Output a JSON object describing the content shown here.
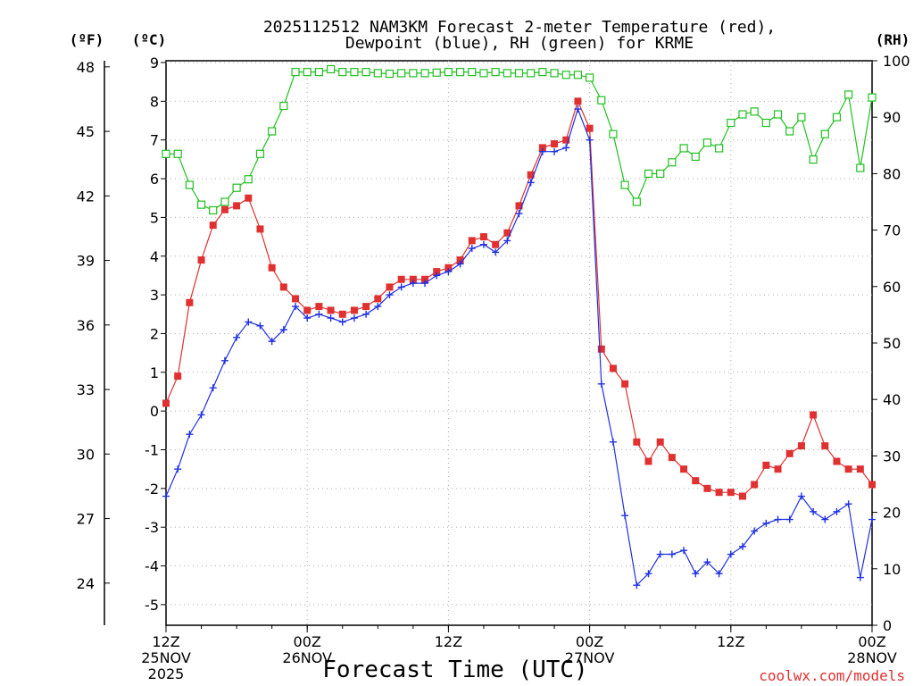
{
  "chart_data": {
    "type": "line",
    "title_lines": [
      "2025112512 NAM3KM Forecast 2-meter Temperature (red),",
      "Dewpoint (blue), RH (green) for KRME"
    ],
    "xlabel": "Forecast Time (UTC)",
    "credit": "coolwx.com/models",
    "units": {
      "fahrenheit": "(ºF)",
      "celsius": "(ºC)",
      "rh": "(RH)"
    },
    "x": {
      "range": [
        0,
        60
      ],
      "step_hours": 1
    },
    "x_ticks": [
      {
        "hour": 0,
        "lines": [
          "12Z",
          "25NOV",
          "2025"
        ]
      },
      {
        "hour": 12,
        "lines": [
          "00Z",
          "26NOV"
        ]
      },
      {
        "hour": 24,
        "lines": [
          "12Z"
        ]
      },
      {
        "hour": 36,
        "lines": [
          "00Z",
          "27NOV"
        ]
      },
      {
        "hour": 48,
        "lines": [
          "12Z"
        ]
      },
      {
        "hour": 60,
        "lines": [
          "00Z",
          "28NOV"
        ]
      }
    ],
    "y_celsius": {
      "range": [
        -5.6,
        9
      ],
      "ticks": [
        "9",
        "8",
        "7",
        "6",
        "5",
        "4",
        "3",
        "2",
        "1",
        "0",
        "-1",
        "-2",
        "-3",
        "-4",
        "-5"
      ]
    },
    "y_fahrenheit": {
      "ticks": [
        "48",
        "45",
        "42",
        "39",
        "36",
        "33",
        "30",
        "27",
        "24"
      ]
    },
    "y_rh": {
      "range": [
        0,
        100
      ],
      "ticks": [
        "100",
        "90",
        "80",
        "70",
        "60",
        "50",
        "40",
        "30",
        "20",
        "10",
        "0"
      ]
    },
    "series": [
      {
        "name": "2-meter Temperature",
        "color": "#e03030",
        "marker": "filled-square",
        "axis": "celsius",
        "values": [
          0.2,
          0.9,
          2.8,
          3.9,
          4.8,
          5.2,
          5.3,
          5.5,
          4.7,
          3.7,
          3.2,
          2.9,
          2.6,
          2.7,
          2.6,
          2.5,
          2.6,
          2.7,
          2.9,
          3.2,
          3.4,
          3.4,
          3.4,
          3.6,
          3.7,
          3.9,
          4.4,
          4.5,
          4.3,
          4.6,
          5.3,
          6.1,
          6.8,
          6.9,
          7.0,
          8.0,
          7.3,
          1.6,
          1.1,
          0.7,
          -0.8,
          -1.3,
          -0.8,
          -1.2,
          -1.5,
          -1.8,
          -2.0,
          -2.1,
          -2.1,
          -2.2,
          -1.9,
          -1.4,
          -1.5,
          -1.1,
          -0.9,
          -0.1,
          -0.9,
          -1.3,
          -1.5,
          -1.5,
          -1.9
        ]
      },
      {
        "name": "Dewpoint",
        "color": "#2030e0",
        "marker": "plus",
        "axis": "celsius",
        "values": [
          -2.2,
          -1.5,
          -0.6,
          -0.1,
          0.6,
          1.3,
          1.9,
          2.3,
          2.2,
          1.8,
          2.1,
          2.7,
          2.4,
          2.5,
          2.4,
          2.3,
          2.4,
          2.5,
          2.7,
          3.0,
          3.2,
          3.3,
          3.3,
          3.5,
          3.6,
          3.8,
          4.2,
          4.3,
          4.1,
          4.4,
          5.1,
          5.9,
          6.7,
          6.7,
          6.8,
          7.8,
          7.0,
          0.7,
          -0.8,
          -2.7,
          -4.5,
          -4.2,
          -3.7,
          -3.7,
          -3.6,
          -4.2,
          -3.9,
          -4.2,
          -3.7,
          -3.5,
          -3.1,
          -2.9,
          -2.8,
          -2.8,
          -2.2,
          -2.6,
          -2.8,
          -2.6,
          -2.4,
          -4.3,
          -2.8
        ]
      },
      {
        "name": "Relative Humidity",
        "color": "#20c020",
        "marker": "open-square",
        "axis": "rh",
        "values": [
          83.5,
          83.5,
          78,
          74.5,
          73.5,
          75,
          77.5,
          79,
          83.5,
          87.5,
          92,
          98,
          98,
          98,
          98.5,
          98,
          98,
          98,
          97.8,
          97.7,
          97.8,
          97.8,
          97.8,
          97.9,
          98,
          98,
          98,
          97.8,
          98,
          97.8,
          97.8,
          97.8,
          98,
          97.8,
          97.5,
          97.5,
          97,
          93,
          87,
          78,
          75,
          80,
          80,
          82,
          84.5,
          83,
          85.5,
          84.5,
          89,
          90.5,
          91,
          89,
          90.5,
          87.5,
          90,
          82.5,
          87,
          90,
          94,
          81,
          93.5
        ]
      }
    ]
  }
}
